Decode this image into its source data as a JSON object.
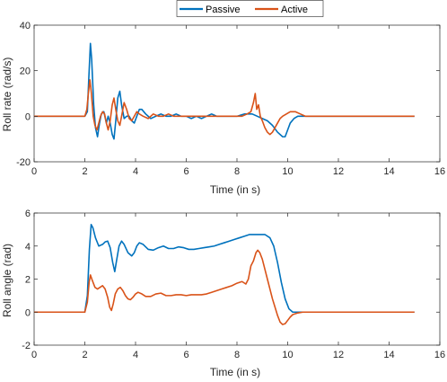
{
  "legend": {
    "placement": "top-center",
    "entries": [
      {
        "name": "Passive",
        "color": "#0072BD"
      },
      {
        "name": "Active",
        "color": "#D95319"
      }
    ]
  },
  "chart_data": [
    {
      "type": "line",
      "xlabel": "Time (in s)",
      "ylabel": "Roll rate (rad/s)",
      "xlim": [
        0,
        16
      ],
      "ylim": [
        -20,
        40
      ],
      "xticks": [
        0,
        2,
        4,
        6,
        8,
        10,
        12,
        14,
        16
      ],
      "yticks": [
        -20,
        0,
        20,
        40
      ],
      "grid": false,
      "series": [
        {
          "name": "Passive",
          "color": "#0072BD",
          "points": [
            [
              0,
              0
            ],
            [
              2.0,
              0
            ],
            [
              2.1,
              2
            ],
            [
              2.15,
              15
            ],
            [
              2.22,
              32
            ],
            [
              2.27,
              25
            ],
            [
              2.35,
              5
            ],
            [
              2.42,
              -5
            ],
            [
              2.5,
              -9
            ],
            [
              2.58,
              -3
            ],
            [
              2.65,
              1
            ],
            [
              2.75,
              2
            ],
            [
              2.85,
              -3
            ],
            [
              2.92,
              0
            ],
            [
              3.0,
              -3
            ],
            [
              3.08,
              -8
            ],
            [
              3.15,
              -10
            ],
            [
              3.22,
              -2
            ],
            [
              3.3,
              8
            ],
            [
              3.38,
              11
            ],
            [
              3.45,
              5
            ],
            [
              3.55,
              -1
            ],
            [
              3.65,
              0
            ],
            [
              3.75,
              0
            ],
            [
              3.85,
              -2
            ],
            [
              3.95,
              -3
            ],
            [
              4.05,
              0
            ],
            [
              4.15,
              3
            ],
            [
              4.25,
              3
            ],
            [
              4.4,
              1
            ],
            [
              4.6,
              -1
            ],
            [
              4.8,
              0
            ],
            [
              5.0,
              1
            ],
            [
              5.2,
              0
            ],
            [
              5.4,
              0
            ],
            [
              5.6,
              1
            ],
            [
              5.8,
              0
            ],
            [
              6.0,
              0
            ],
            [
              6.2,
              -1
            ],
            [
              6.4,
              0
            ],
            [
              6.6,
              -1
            ],
            [
              6.8,
              0
            ],
            [
              7.0,
              1
            ],
            [
              7.2,
              0
            ],
            [
              7.5,
              0
            ],
            [
              7.8,
              0
            ],
            [
              8.0,
              0
            ],
            [
              8.3,
              1
            ],
            [
              8.6,
              1
            ],
            [
              8.8,
              0
            ],
            [
              9.0,
              -1
            ],
            [
              9.2,
              -2
            ],
            [
              9.4,
              -4
            ],
            [
              9.6,
              -7
            ],
            [
              9.8,
              -9
            ],
            [
              9.9,
              -9
            ],
            [
              10.0,
              -6
            ],
            [
              10.1,
              -3
            ],
            [
              10.25,
              -1
            ],
            [
              10.4,
              0
            ],
            [
              11,
              0
            ],
            [
              15,
              0
            ]
          ]
        },
        {
          "name": "Active",
          "color": "#D95319",
          "points": [
            [
              0,
              0
            ],
            [
              2.0,
              0
            ],
            [
              2.08,
              3
            ],
            [
              2.14,
              10
            ],
            [
              2.2,
              16
            ],
            [
              2.26,
              10
            ],
            [
              2.33,
              0
            ],
            [
              2.4,
              -4
            ],
            [
              2.48,
              -6
            ],
            [
              2.55,
              -3
            ],
            [
              2.62,
              0
            ],
            [
              2.7,
              2
            ],
            [
              2.78,
              1
            ],
            [
              2.85,
              -3
            ],
            [
              2.92,
              -6
            ],
            [
              3.0,
              -2
            ],
            [
              3.08,
              5
            ],
            [
              3.15,
              8
            ],
            [
              3.22,
              3
            ],
            [
              3.3,
              -2
            ],
            [
              3.38,
              -4
            ],
            [
              3.45,
              0
            ],
            [
              3.55,
              6
            ],
            [
              3.65,
              3
            ],
            [
              3.75,
              -1
            ],
            [
              3.85,
              -2
            ],
            [
              3.95,
              0
            ],
            [
              4.05,
              2
            ],
            [
              4.15,
              1
            ],
            [
              4.3,
              0
            ],
            [
              4.5,
              -1
            ],
            [
              4.7,
              1
            ],
            [
              4.9,
              0
            ],
            [
              5.1,
              0
            ],
            [
              5.3,
              1
            ],
            [
              5.5,
              0
            ],
            [
              5.8,
              0
            ],
            [
              6.1,
              0
            ],
            [
              6.4,
              0
            ],
            [
              6.7,
              0
            ],
            [
              7.0,
              0
            ],
            [
              7.3,
              0
            ],
            [
              7.6,
              0
            ],
            [
              7.9,
              0
            ],
            [
              8.2,
              0
            ],
            [
              8.4,
              1
            ],
            [
              8.55,
              2
            ],
            [
              8.65,
              6
            ],
            [
              8.72,
              10
            ],
            [
              8.78,
              3
            ],
            [
              8.85,
              5
            ],
            [
              8.92,
              0
            ],
            [
              9.0,
              -2
            ],
            [
              9.1,
              -5
            ],
            [
              9.2,
              -7
            ],
            [
              9.3,
              -8
            ],
            [
              9.4,
              -7
            ],
            [
              9.5,
              -5
            ],
            [
              9.6,
              -3
            ],
            [
              9.7,
              -1
            ],
            [
              9.8,
              0
            ],
            [
              9.95,
              1
            ],
            [
              10.1,
              2
            ],
            [
              10.3,
              2
            ],
            [
              10.5,
              1
            ],
            [
              10.7,
              0
            ],
            [
              11,
              0
            ],
            [
              15,
              0
            ]
          ]
        }
      ]
    },
    {
      "type": "line",
      "xlabel": "Time (in s)",
      "ylabel": "Roll angle (rad)",
      "xlim": [
        0,
        16
      ],
      "ylim": [
        -2,
        6
      ],
      "xticks": [
        0,
        2,
        4,
        6,
        8,
        10,
        12,
        14,
        16
      ],
      "yticks": [
        -2,
        0,
        2,
        4,
        6
      ],
      "grid": false,
      "series": [
        {
          "name": "Passive",
          "color": "#0072BD",
          "points": [
            [
              0,
              0
            ],
            [
              2.0,
              0
            ],
            [
              2.1,
              1.0
            ],
            [
              2.18,
              3.8
            ],
            [
              2.25,
              5.3
            ],
            [
              2.32,
              5.1
            ],
            [
              2.42,
              4.5
            ],
            [
              2.55,
              4.0
            ],
            [
              2.7,
              4.1
            ],
            [
              2.8,
              4.25
            ],
            [
              2.9,
              4.3
            ],
            [
              3.0,
              3.9
            ],
            [
              3.1,
              3.0
            ],
            [
              3.18,
              2.45
            ],
            [
              3.25,
              3.1
            ],
            [
              3.35,
              4.0
            ],
            [
              3.45,
              4.3
            ],
            [
              3.55,
              4.1
            ],
            [
              3.7,
              3.6
            ],
            [
              3.85,
              3.4
            ],
            [
              3.95,
              3.6
            ],
            [
              4.05,
              4.0
            ],
            [
              4.15,
              4.2
            ],
            [
              4.3,
              4.1
            ],
            [
              4.5,
              3.8
            ],
            [
              4.7,
              3.75
            ],
            [
              4.9,
              3.9
            ],
            [
              5.1,
              4.0
            ],
            [
              5.3,
              3.85
            ],
            [
              5.5,
              3.85
            ],
            [
              5.7,
              3.95
            ],
            [
              5.9,
              3.9
            ],
            [
              6.1,
              3.8
            ],
            [
              6.3,
              3.8
            ],
            [
              6.5,
              3.85
            ],
            [
              6.7,
              3.9
            ],
            [
              6.9,
              3.95
            ],
            [
              7.1,
              4.0
            ],
            [
              7.3,
              4.1
            ],
            [
              7.5,
              4.2
            ],
            [
              7.7,
              4.3
            ],
            [
              7.9,
              4.4
            ],
            [
              8.1,
              4.5
            ],
            [
              8.3,
              4.6
            ],
            [
              8.5,
              4.7
            ],
            [
              8.7,
              4.7
            ],
            [
              8.9,
              4.7
            ],
            [
              9.1,
              4.7
            ],
            [
              9.3,
              4.5
            ],
            [
              9.45,
              4.0
            ],
            [
              9.6,
              3.0
            ],
            [
              9.75,
              1.8
            ],
            [
              9.9,
              0.8
            ],
            [
              10.05,
              0.2
            ],
            [
              10.2,
              0.0
            ],
            [
              10.5,
              0
            ],
            [
              11,
              0
            ],
            [
              15,
              0
            ]
          ]
        },
        {
          "name": "Active",
          "color": "#D95319",
          "points": [
            [
              0,
              0
            ],
            [
              2.0,
              0
            ],
            [
              2.1,
              0.6
            ],
            [
              2.17,
              1.8
            ],
            [
              2.22,
              2.25
            ],
            [
              2.3,
              1.9
            ],
            [
              2.4,
              1.5
            ],
            [
              2.5,
              1.4
            ],
            [
              2.6,
              1.5
            ],
            [
              2.7,
              1.6
            ],
            [
              2.8,
              1.4
            ],
            [
              2.9,
              0.9
            ],
            [
              2.98,
              0.3
            ],
            [
              3.05,
              0.1
            ],
            [
              3.12,
              0.5
            ],
            [
              3.2,
              1.1
            ],
            [
              3.3,
              1.4
            ],
            [
              3.4,
              1.5
            ],
            [
              3.5,
              1.3
            ],
            [
              3.6,
              1.0
            ],
            [
              3.7,
              0.8
            ],
            [
              3.8,
              0.75
            ],
            [
              3.9,
              0.9
            ],
            [
              4.0,
              1.1
            ],
            [
              4.1,
              1.2
            ],
            [
              4.25,
              1.1
            ],
            [
              4.4,
              0.95
            ],
            [
              4.6,
              0.95
            ],
            [
              4.8,
              1.1
            ],
            [
              5.0,
              1.15
            ],
            [
              5.2,
              1.0
            ],
            [
              5.4,
              1.0
            ],
            [
              5.6,
              1.05
            ],
            [
              5.8,
              1.05
            ],
            [
              6.0,
              1.0
            ],
            [
              6.2,
              1.05
            ],
            [
              6.4,
              1.05
            ],
            [
              6.6,
              1.05
            ],
            [
              6.8,
              1.1
            ],
            [
              7.0,
              1.2
            ],
            [
              7.2,
              1.3
            ],
            [
              7.4,
              1.4
            ],
            [
              7.6,
              1.5
            ],
            [
              7.8,
              1.6
            ],
            [
              8.0,
              1.75
            ],
            [
              8.2,
              1.85
            ],
            [
              8.35,
              1.7
            ],
            [
              8.45,
              2.0
            ],
            [
              8.55,
              2.8
            ],
            [
              8.65,
              3.1
            ],
            [
              8.75,
              3.6
            ],
            [
              8.82,
              3.75
            ],
            [
              8.9,
              3.6
            ],
            [
              9.0,
              3.2
            ],
            [
              9.1,
              2.6
            ],
            [
              9.2,
              2.0
            ],
            [
              9.3,
              1.4
            ],
            [
              9.4,
              0.8
            ],
            [
              9.5,
              0.3
            ],
            [
              9.6,
              -0.2
            ],
            [
              9.7,
              -0.6
            ],
            [
              9.8,
              -0.75
            ],
            [
              9.9,
              -0.7
            ],
            [
              10.0,
              -0.5
            ],
            [
              10.1,
              -0.3
            ],
            [
              10.2,
              -0.15
            ],
            [
              10.4,
              -0.05
            ],
            [
              10.6,
              0
            ],
            [
              11,
              0
            ],
            [
              15,
              0
            ]
          ]
        }
      ]
    }
  ]
}
